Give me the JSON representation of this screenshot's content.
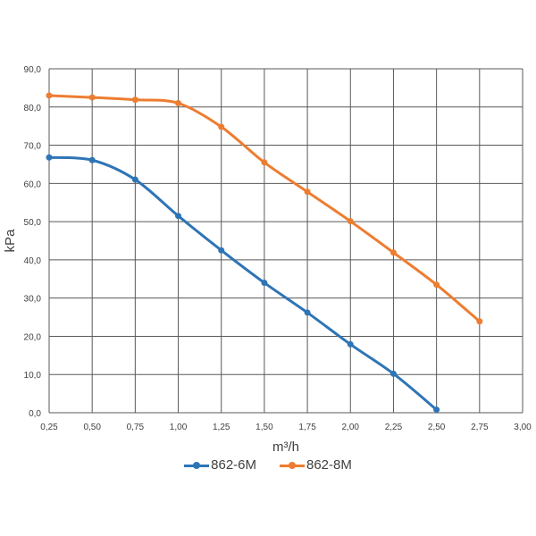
{
  "chart_data": {
    "type": "line",
    "title": "",
    "xlabel": "m³/h",
    "ylabel": "kPa",
    "xlim": [
      0.25,
      3.0
    ],
    "ylim": [
      0,
      90
    ],
    "x_ticks": [
      "0,25",
      "0,50",
      "0,75",
      "1,00",
      "1,25",
      "1,50",
      "1,75",
      "2,00",
      "2,25",
      "2,50",
      "2,75",
      "3,00"
    ],
    "y_ticks": [
      "0,0",
      "10,0",
      "20,0",
      "30,0",
      "40,0",
      "50,0",
      "60,0",
      "70,0",
      "80,0",
      "90,0"
    ],
    "grid": true,
    "legend_position": "bottom",
    "series": [
      {
        "name": "862-6M",
        "color": "#2e75b6",
        "x": [
          0.25,
          0.5,
          0.75,
          1.0,
          1.25,
          1.5,
          1.75,
          2.0,
          2.25,
          2.5
        ],
        "y": [
          66.8,
          66.1,
          61.0,
          51.5,
          42.5,
          34.0,
          26.2,
          17.9,
          10.2,
          0.8
        ]
      },
      {
        "name": "862-8M",
        "color": "#ed7d31",
        "x": [
          0.25,
          0.5,
          0.75,
          1.0,
          1.25,
          1.5,
          1.75,
          2.0,
          2.25,
          2.5,
          2.75
        ],
        "y": [
          83.0,
          82.5,
          81.9,
          81.0,
          74.8,
          65.5,
          57.8,
          50.1,
          41.9,
          33.5,
          23.9
        ]
      }
    ]
  }
}
